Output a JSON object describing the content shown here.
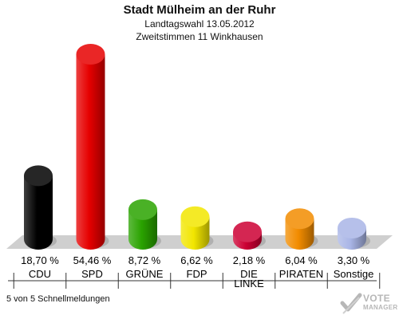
{
  "header": {
    "title": "Stadt Mülheim an der Ruhr",
    "subtitle1": "Landtagswahl 13.05.2012",
    "subtitle2": "Zweitstimmen 11 Winkhausen"
  },
  "footer": {
    "status": "5 von 5 Schnellmeldungen"
  },
  "logo": {
    "text_top": "VOTE",
    "text_bottom": "MANAGER"
  },
  "chart_data": {
    "type": "bar",
    "categories": [
      "CDU",
      "SPD",
      "GRÜNE",
      "FDP",
      "DIE LINKE",
      "PIRATEN",
      "Sonstige"
    ],
    "values": [
      18.7,
      54.46,
      8.72,
      6.62,
      2.18,
      6.04,
      3.3
    ],
    "value_labels": [
      "18,70 %",
      "54,46 %",
      "8,72 %",
      "6,62 %",
      "2,18 %",
      "6,04 %",
      "3,30 %"
    ],
    "colors": [
      "#000000",
      "#e60000",
      "#2aa300",
      "#f2e600",
      "#cc0033",
      "#f28c00",
      "#a9b5e6"
    ],
    "ylim": [
      0,
      54.46
    ],
    "grid": false,
    "legend": "none"
  }
}
